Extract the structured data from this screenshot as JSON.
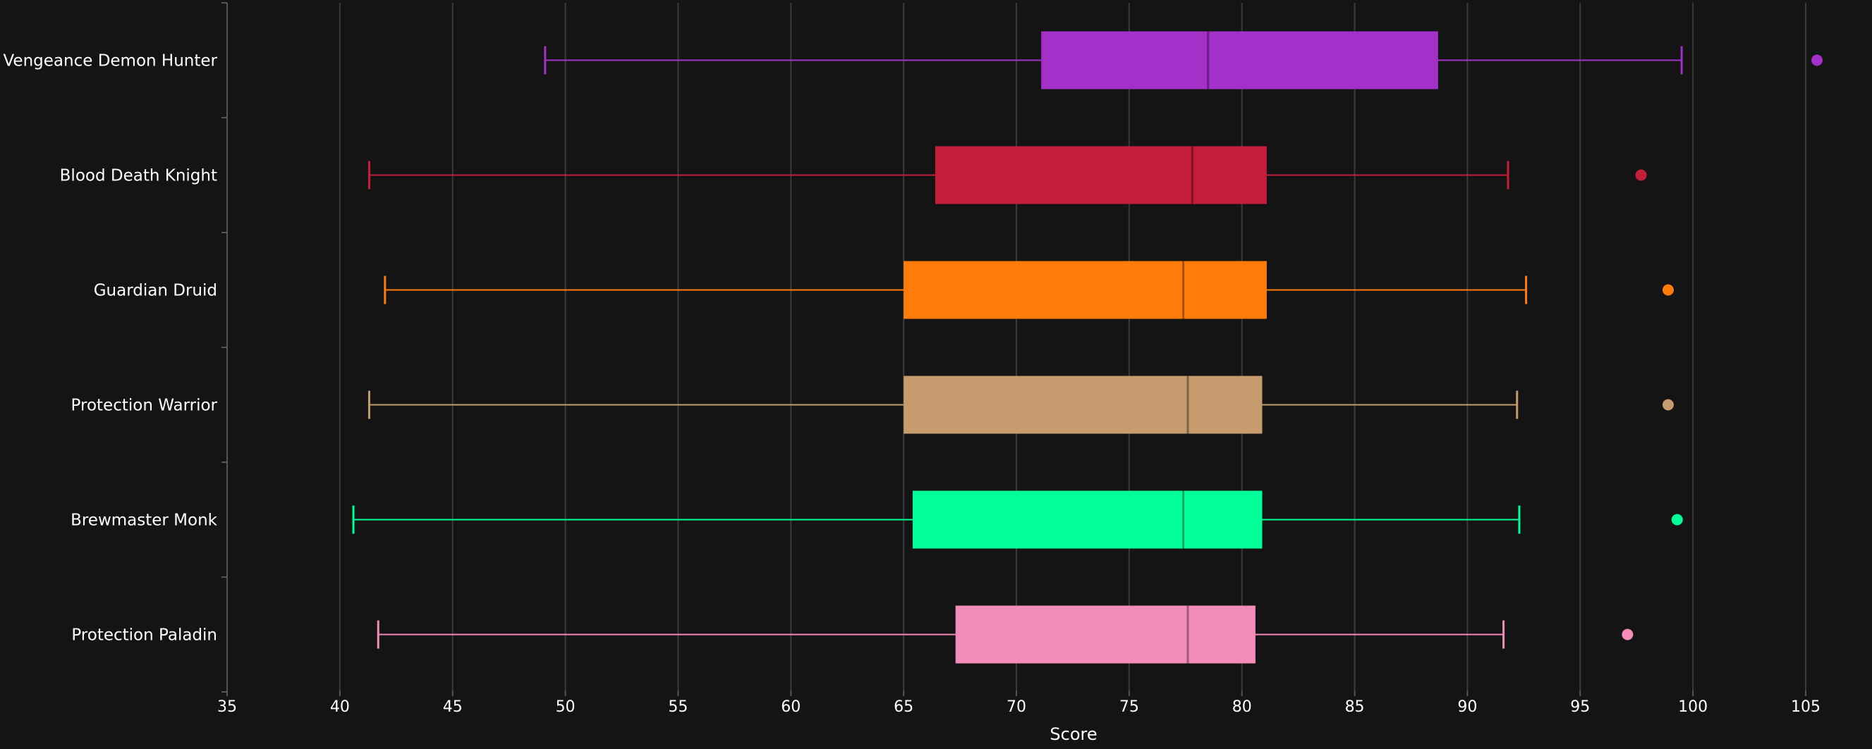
{
  "chart_data": {
    "type": "boxplot",
    "orientation": "horizontal",
    "title": "",
    "xlabel": "Score",
    "ylabel": "",
    "xlim": [
      35,
      107
    ],
    "xticks": [
      35,
      40,
      45,
      50,
      55,
      60,
      65,
      70,
      75,
      80,
      85,
      90,
      95,
      100,
      105
    ],
    "grid": "vertical",
    "background": "#141414",
    "series": [
      {
        "name": "Vengeance Demon Hunter",
        "color": "#A330C9",
        "whisker_low": 49.1,
        "q1": 71.1,
        "median": 78.5,
        "q3": 88.7,
        "whisker_high": 99.5,
        "outliers": [
          105.5
        ]
      },
      {
        "name": "Blood Death Knight",
        "color": "#C41E3A",
        "whisker_low": 41.3,
        "q1": 66.4,
        "median": 77.8,
        "q3": 81.1,
        "whisker_high": 91.8,
        "outliers": [
          97.7
        ]
      },
      {
        "name": "Guardian Druid",
        "color": "#FF7C0A",
        "whisker_low": 42.0,
        "q1": 65.0,
        "median": 77.4,
        "q3": 81.1,
        "whisker_high": 92.6,
        "outliers": [
          98.9
        ]
      },
      {
        "name": "Protection Warrior",
        "color": "#C69B6D",
        "whisker_low": 41.3,
        "q1": 65.0,
        "median": 77.6,
        "q3": 80.9,
        "whisker_high": 92.2,
        "outliers": [
          98.9
        ]
      },
      {
        "name": "Brewmaster Monk",
        "color": "#00FF98",
        "whisker_low": 40.6,
        "q1": 65.4,
        "median": 77.4,
        "q3": 80.9,
        "whisker_high": 92.3,
        "outliers": [
          99.3
        ]
      },
      {
        "name": "Protection Paladin",
        "color": "#F48CBA",
        "whisker_low": 41.7,
        "q1": 67.3,
        "median": 77.6,
        "q3": 80.6,
        "whisker_high": 91.6,
        "outliers": [
          97.1
        ]
      }
    ]
  }
}
